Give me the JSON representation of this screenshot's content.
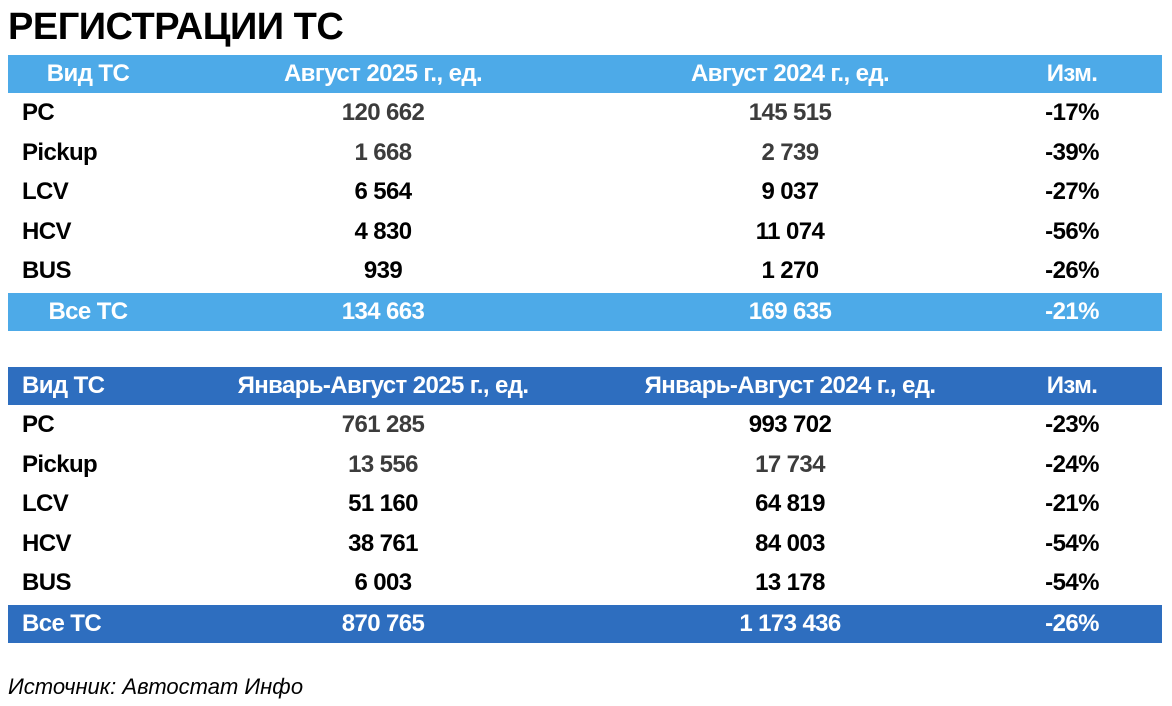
{
  "title": "РЕГИСТРАЦИИ ТС",
  "tables": [
    {
      "header": [
        "Вид ТС",
        "Август 2025 г., ед.",
        "Август 2024 г., ед.",
        "Изм."
      ],
      "rows": [
        [
          "PC",
          "120 662",
          "145 515",
          "-17%"
        ],
        [
          "Pickup",
          "1 668",
          "2 739",
          "-39%"
        ],
        [
          "LCV",
          "6 564",
          "9 037",
          "-27%"
        ],
        [
          "HCV",
          "4 830",
          "11 074",
          "-56%"
        ],
        [
          "BUS",
          "939",
          "1 270",
          "-26%"
        ]
      ],
      "total": [
        "Все ТС",
        "134 663",
        "169 635",
        "-21%"
      ]
    },
    {
      "header": [
        "Вид ТС",
        "Январь-Август 2025 г., ед.",
        "Январь-Август 2024 г., ед.",
        "Изм."
      ],
      "rows": [
        [
          "PC",
          "761 285",
          "993 702",
          "-23%"
        ],
        [
          "Pickup",
          "13 556",
          "17 734",
          "-24%"
        ],
        [
          "LCV",
          "51 160",
          "64 819",
          "-21%"
        ],
        [
          "HCV",
          "38 761",
          "84 003",
          "-54%"
        ],
        [
          "BUS",
          "6 003",
          "13 178",
          "-54%"
        ]
      ],
      "total": [
        "Все ТС",
        "870 765",
        "1 173 436",
        "-26%"
      ]
    }
  ],
  "source": "Источник: Автостат Инфо"
}
